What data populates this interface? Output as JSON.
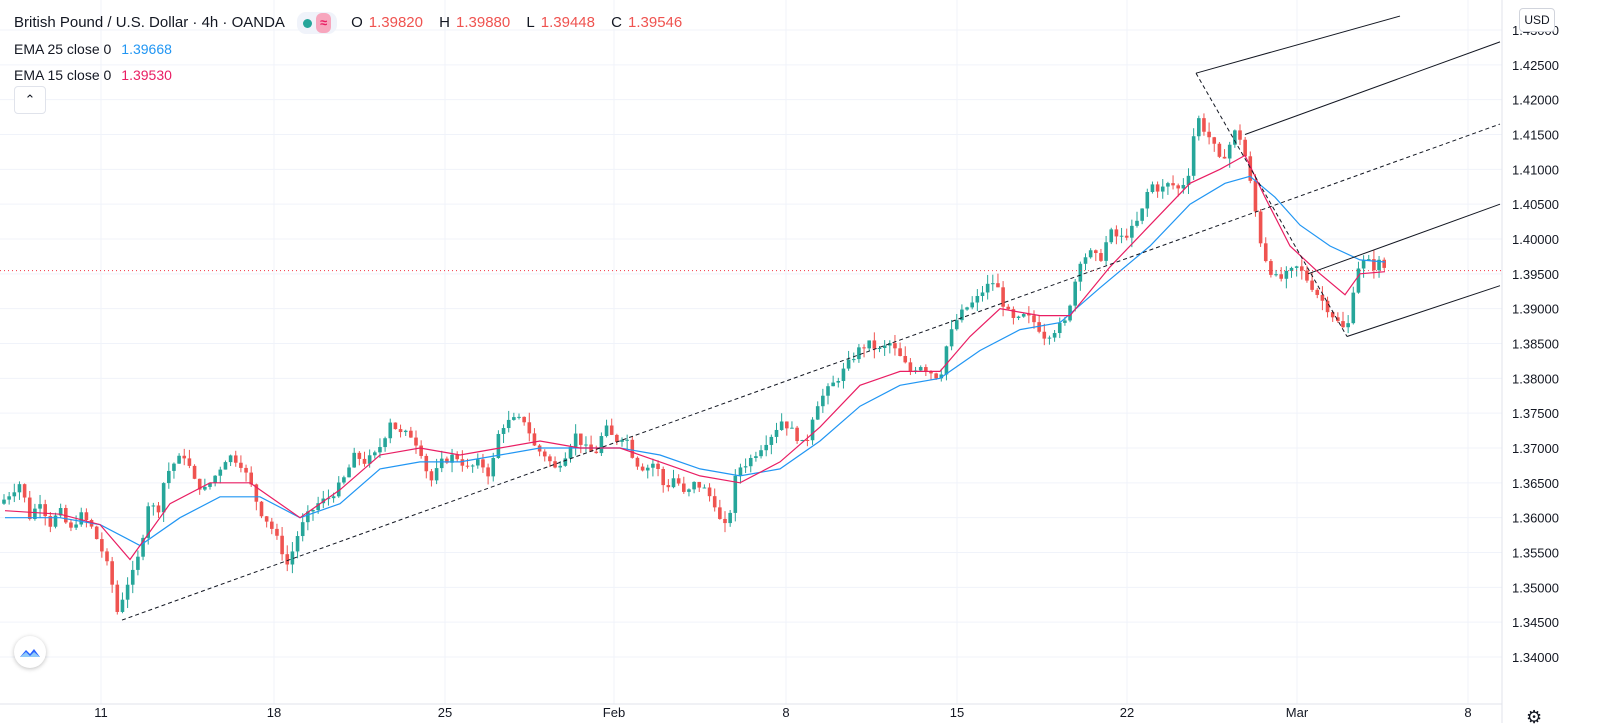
{
  "header": {
    "symbol": "British Pound / U.S. Dollar · 4h · OANDA",
    "ohlc": {
      "o_label": "O",
      "o": "1.39820",
      "h_label": "H",
      "h": "1.39880",
      "l_label": "L",
      "l": "1.39448",
      "c_label": "C",
      "c": "1.39546"
    },
    "pill_wave": "≈"
  },
  "indicators": [
    {
      "label": "EMA 25 close 0",
      "value": "1.39668",
      "color": "#2196f3"
    },
    {
      "label": "EMA 15 close 0",
      "value": "1.39530",
      "color": "#e91e63"
    }
  ],
  "controls": {
    "collapse_icon": "chevron-up-icon",
    "collapse_glyph": "⌃",
    "currency": "USD",
    "settings_icon": "gear-icon",
    "settings_glyph": "⚙",
    "logo_icon": "tradingview-cloud-icon"
  },
  "colors": {
    "up": "#26a69a",
    "down": "#ef5350",
    "ema25": "#2196f3",
    "ema15": "#e91e63",
    "price_line": "#f23645",
    "grid": "#f0f3fa"
  },
  "chart_data": {
    "type": "candlestick",
    "timeframe": "4h",
    "x_ticks": [
      "11",
      "18",
      "25",
      "Feb",
      "8",
      "15",
      "22",
      "Mar",
      "8"
    ],
    "y_ticks": [
      "1.43000",
      "1.42500",
      "1.42000",
      "1.41500",
      "1.41000",
      "1.40500",
      "1.40000",
      "1.39500",
      "1.39000",
      "1.38500",
      "1.38000",
      "1.37500",
      "1.37000",
      "1.36500",
      "1.36000",
      "1.35500",
      "1.35000",
      "1.34500",
      "1.34000"
    ],
    "ylim": [
      1.3375,
      1.4325
    ],
    "last_price": 1.39546,
    "close_path": [
      [
        0,
        1.362
      ],
      [
        10,
        1.3635
      ],
      [
        20,
        1.365
      ],
      [
        30,
        1.36
      ],
      [
        40,
        1.3625
      ],
      [
        50,
        1.359
      ],
      [
        60,
        1.361
      ],
      [
        70,
        1.358
      ],
      [
        80,
        1.3605
      ],
      [
        90,
        1.359
      ],
      [
        100,
        1.356
      ],
      [
        110,
        1.352
      ],
      [
        118,
        1.346
      ],
      [
        125,
        1.35
      ],
      [
        133,
        1.352
      ],
      [
        140,
        1.355
      ],
      [
        148,
        1.362
      ],
      [
        158,
        1.361
      ],
      [
        165,
        1.366
      ],
      [
        175,
        1.368
      ],
      [
        185,
        1.369
      ],
      [
        195,
        1.365
      ],
      [
        205,
        1.364
      ],
      [
        215,
        1.366
      ],
      [
        228,
        1.369
      ],
      [
        240,
        1.368
      ],
      [
        250,
        1.365
      ],
      [
        260,
        1.361
      ],
      [
        270,
        1.359
      ],
      [
        280,
        1.356
      ],
      [
        288,
        1.353
      ],
      [
        296,
        1.357
      ],
      [
        306,
        1.36
      ],
      [
        318,
        1.362
      ],
      [
        330,
        1.363
      ],
      [
        342,
        1.365
      ],
      [
        355,
        1.369
      ],
      [
        365,
        1.368
      ],
      [
        375,
        1.369
      ],
      [
        383,
        1.371
      ],
      [
        390,
        1.374
      ],
      [
        400,
        1.372
      ],
      [
        410,
        1.372
      ],
      [
        420,
        1.37
      ],
      [
        430,
        1.365
      ],
      [
        442,
        1.368
      ],
      [
        455,
        1.369
      ],
      [
        468,
        1.367
      ],
      [
        480,
        1.368
      ],
      [
        490,
        1.366
      ],
      [
        500,
        1.373
      ],
      [
        512,
        1.374
      ],
      [
        525,
        1.374
      ],
      [
        535,
        1.37
      ],
      [
        545,
        1.369
      ],
      [
        555,
        1.367
      ],
      [
        565,
        1.369
      ],
      [
        575,
        1.372
      ],
      [
        585,
        1.37
      ],
      [
        595,
        1.369
      ],
      [
        605,
        1.373
      ],
      [
        615,
        1.371
      ],
      [
        625,
        1.372
      ],
      [
        635,
        1.368
      ],
      [
        645,
        1.367
      ],
      [
        655,
        1.368
      ],
      [
        665,
        1.364
      ],
      [
        675,
        1.366
      ],
      [
        685,
        1.363
      ],
      [
        695,
        1.365
      ],
      [
        705,
        1.364
      ],
      [
        715,
        1.362
      ],
      [
        723,
        1.358
      ],
      [
        729,
        1.36
      ],
      [
        737,
        1.367
      ],
      [
        748,
        1.368
      ],
      [
        760,
        1.37
      ],
      [
        772,
        1.372
      ],
      [
        782,
        1.374
      ],
      [
        795,
        1.372
      ],
      [
        805,
        1.37
      ],
      [
        815,
        1.376
      ],
      [
        826,
        1.378
      ],
      [
        838,
        1.38
      ],
      [
        848,
        1.382
      ],
      [
        858,
        1.384
      ],
      [
        868,
        1.385
      ],
      [
        880,
        1.384
      ],
      [
        890,
        1.385
      ],
      [
        900,
        1.383
      ],
      [
        910,
        1.381
      ],
      [
        920,
        1.382
      ],
      [
        930,
        1.381
      ],
      [
        940,
        1.38
      ],
      [
        945,
        1.384
      ],
      [
        955,
        1.388
      ],
      [
        965,
        1.39
      ],
      [
        975,
        1.391
      ],
      [
        985,
        1.393
      ],
      [
        995,
        1.394
      ],
      [
        1005,
        1.39
      ],
      [
        1015,
        1.388
      ],
      [
        1025,
        1.389
      ],
      [
        1035,
        1.388
      ],
      [
        1045,
        1.386
      ],
      [
        1055,
        1.387
      ],
      [
        1065,
        1.388
      ],
      [
        1072,
        1.392
      ],
      [
        1080,
        1.397
      ],
      [
        1090,
        1.398
      ],
      [
        1100,
        1.397
      ],
      [
        1110,
        1.401
      ],
      [
        1120,
        1.4
      ],
      [
        1130,
        1.401
      ],
      [
        1140,
        1.403
      ],
      [
        1150,
        1.408
      ],
      [
        1160,
        1.407
      ],
      [
        1170,
        1.408
      ],
      [
        1180,
        1.407
      ],
      [
        1190,
        1.41
      ],
      [
        1196,
        1.418
      ],
      [
        1203,
        1.416
      ],
      [
        1212,
        1.414
      ],
      [
        1220,
        1.411
      ],
      [
        1228,
        1.413
      ],
      [
        1237,
        1.416
      ],
      [
        1245,
        1.412
      ],
      [
        1253,
        1.406
      ],
      [
        1260,
        1.4
      ],
      [
        1268,
        1.396
      ],
      [
        1278,
        1.394
      ],
      [
        1288,
        1.395
      ],
      [
        1298,
        1.396
      ],
      [
        1308,
        1.394
      ],
      [
        1318,
        1.392
      ],
      [
        1328,
        1.39
      ],
      [
        1338,
        1.388
      ],
      [
        1347,
        1.3865
      ],
      [
        1352,
        1.392
      ],
      [
        1358,
        1.396
      ],
      [
        1366,
        1.397
      ],
      [
        1374,
        1.396
      ],
      [
        1382,
        1.397
      ],
      [
        1385,
        1.3955
      ]
    ],
    "ema15_path": [
      [
        5,
        1.361
      ],
      [
        60,
        1.3605
      ],
      [
        100,
        1.359
      ],
      [
        130,
        1.354
      ],
      [
        170,
        1.362
      ],
      [
        210,
        1.365
      ],
      [
        250,
        1.365
      ],
      [
        300,
        1.36
      ],
      [
        340,
        1.364
      ],
      [
        380,
        1.369
      ],
      [
        420,
        1.37
      ],
      [
        460,
        1.369
      ],
      [
        500,
        1.37
      ],
      [
        540,
        1.371
      ],
      [
        580,
        1.37
      ],
      [
        620,
        1.37
      ],
      [
        660,
        1.368
      ],
      [
        700,
        1.366
      ],
      [
        740,
        1.365
      ],
      [
        780,
        1.368
      ],
      [
        820,
        1.373
      ],
      [
        860,
        1.379
      ],
      [
        900,
        1.381
      ],
      [
        940,
        1.381
      ],
      [
        970,
        1.386
      ],
      [
        1000,
        1.39
      ],
      [
        1040,
        1.389
      ],
      [
        1070,
        1.389
      ],
      [
        1110,
        1.396
      ],
      [
        1150,
        1.402
      ],
      [
        1190,
        1.408
      ],
      [
        1220,
        1.41
      ],
      [
        1245,
        1.412
      ],
      [
        1265,
        1.406
      ],
      [
        1290,
        1.399
      ],
      [
        1320,
        1.395
      ],
      [
        1345,
        1.392
      ],
      [
        1360,
        1.395
      ],
      [
        1385,
        1.3953
      ]
    ],
    "ema25_path": [
      [
        5,
        1.36
      ],
      [
        60,
        1.36
      ],
      [
        100,
        1.359
      ],
      [
        140,
        1.356
      ],
      [
        180,
        1.36
      ],
      [
        220,
        1.363
      ],
      [
        260,
        1.363
      ],
      [
        300,
        1.36
      ],
      [
        340,
        1.362
      ],
      [
        380,
        1.367
      ],
      [
        420,
        1.368
      ],
      [
        460,
        1.368
      ],
      [
        500,
        1.369
      ],
      [
        540,
        1.37
      ],
      [
        580,
        1.37
      ],
      [
        620,
        1.37
      ],
      [
        660,
        1.369
      ],
      [
        700,
        1.367
      ],
      [
        740,
        1.366
      ],
      [
        780,
        1.367
      ],
      [
        820,
        1.371
      ],
      [
        860,
        1.376
      ],
      [
        900,
        1.379
      ],
      [
        940,
        1.38
      ],
      [
        980,
        1.384
      ],
      [
        1020,
        1.387
      ],
      [
        1060,
        1.388
      ],
      [
        1100,
        1.393
      ],
      [
        1150,
        1.399
      ],
      [
        1190,
        1.405
      ],
      [
        1225,
        1.408
      ],
      [
        1250,
        1.409
      ],
      [
        1275,
        1.406
      ],
      [
        1300,
        1.402
      ],
      [
        1330,
        1.399
      ],
      [
        1360,
        1.397
      ],
      [
        1385,
        1.3967
      ]
    ],
    "pitchfork_lines": [
      {
        "style": "dashed",
        "pts": [
          [
            122,
            1.3453
          ],
          [
            1500,
            1.4165
          ]
        ]
      },
      {
        "style": "dashed",
        "pts": [
          [
            1196,
            1.4238
          ],
          [
            1347,
            1.386
          ]
        ]
      },
      {
        "style": "solid",
        "pts": [
          [
            1196,
            1.4238
          ],
          [
            1400,
            1.432
          ]
        ]
      },
      {
        "style": "solid",
        "pts": [
          [
            1245,
            1.415
          ],
          [
            1500,
            1.4283
          ]
        ]
      },
      {
        "style": "solid",
        "pts": [
          [
            1308,
            1.395
          ],
          [
            1500,
            1.405
          ]
        ]
      },
      {
        "style": "solid",
        "pts": [
          [
            1347,
            1.386
          ],
          [
            1500,
            1.3933
          ]
        ]
      }
    ]
  }
}
